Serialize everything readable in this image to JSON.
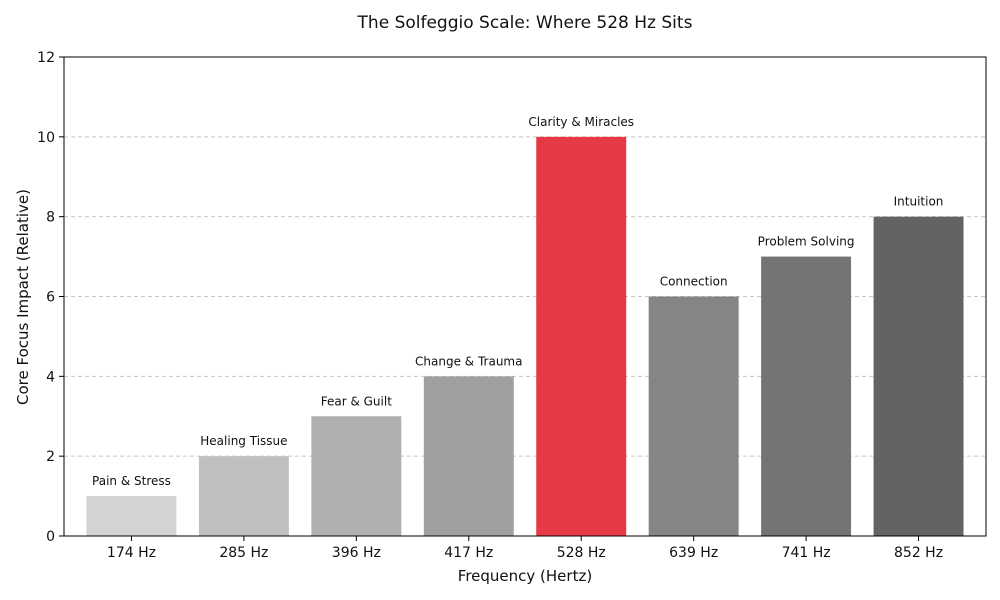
{
  "chart_data": {
    "type": "bar",
    "title": "The Solfeggio Scale: Where 528 Hz Sits",
    "xlabel": "Frequency (Hertz)",
    "ylabel": "Core Focus Impact (Relative)",
    "ylim": [
      0,
      12
    ],
    "yticks": [
      0,
      2,
      4,
      6,
      8,
      10,
      12
    ],
    "grid": "horizontal dashed",
    "categories": [
      "174 Hz",
      "285 Hz",
      "396 Hz",
      "417 Hz",
      "528 Hz",
      "639 Hz",
      "741 Hz",
      "852 Hz"
    ],
    "values": [
      1,
      2,
      3,
      4,
      10,
      6,
      7,
      8
    ],
    "bar_labels": [
      "Pain & Stress",
      "Healing Tissue",
      "Fear & Guilt",
      "Change & Trauma",
      "Clarity & Miracles",
      "Connection",
      "Problem Solving",
      "Intuition"
    ],
    "colors": [
      "#d3d3d3",
      "#c0c0c0",
      "#b0b0b0",
      "#a0a0a0",
      "#e63946",
      "#858585",
      "#747474",
      "#636363"
    ]
  }
}
